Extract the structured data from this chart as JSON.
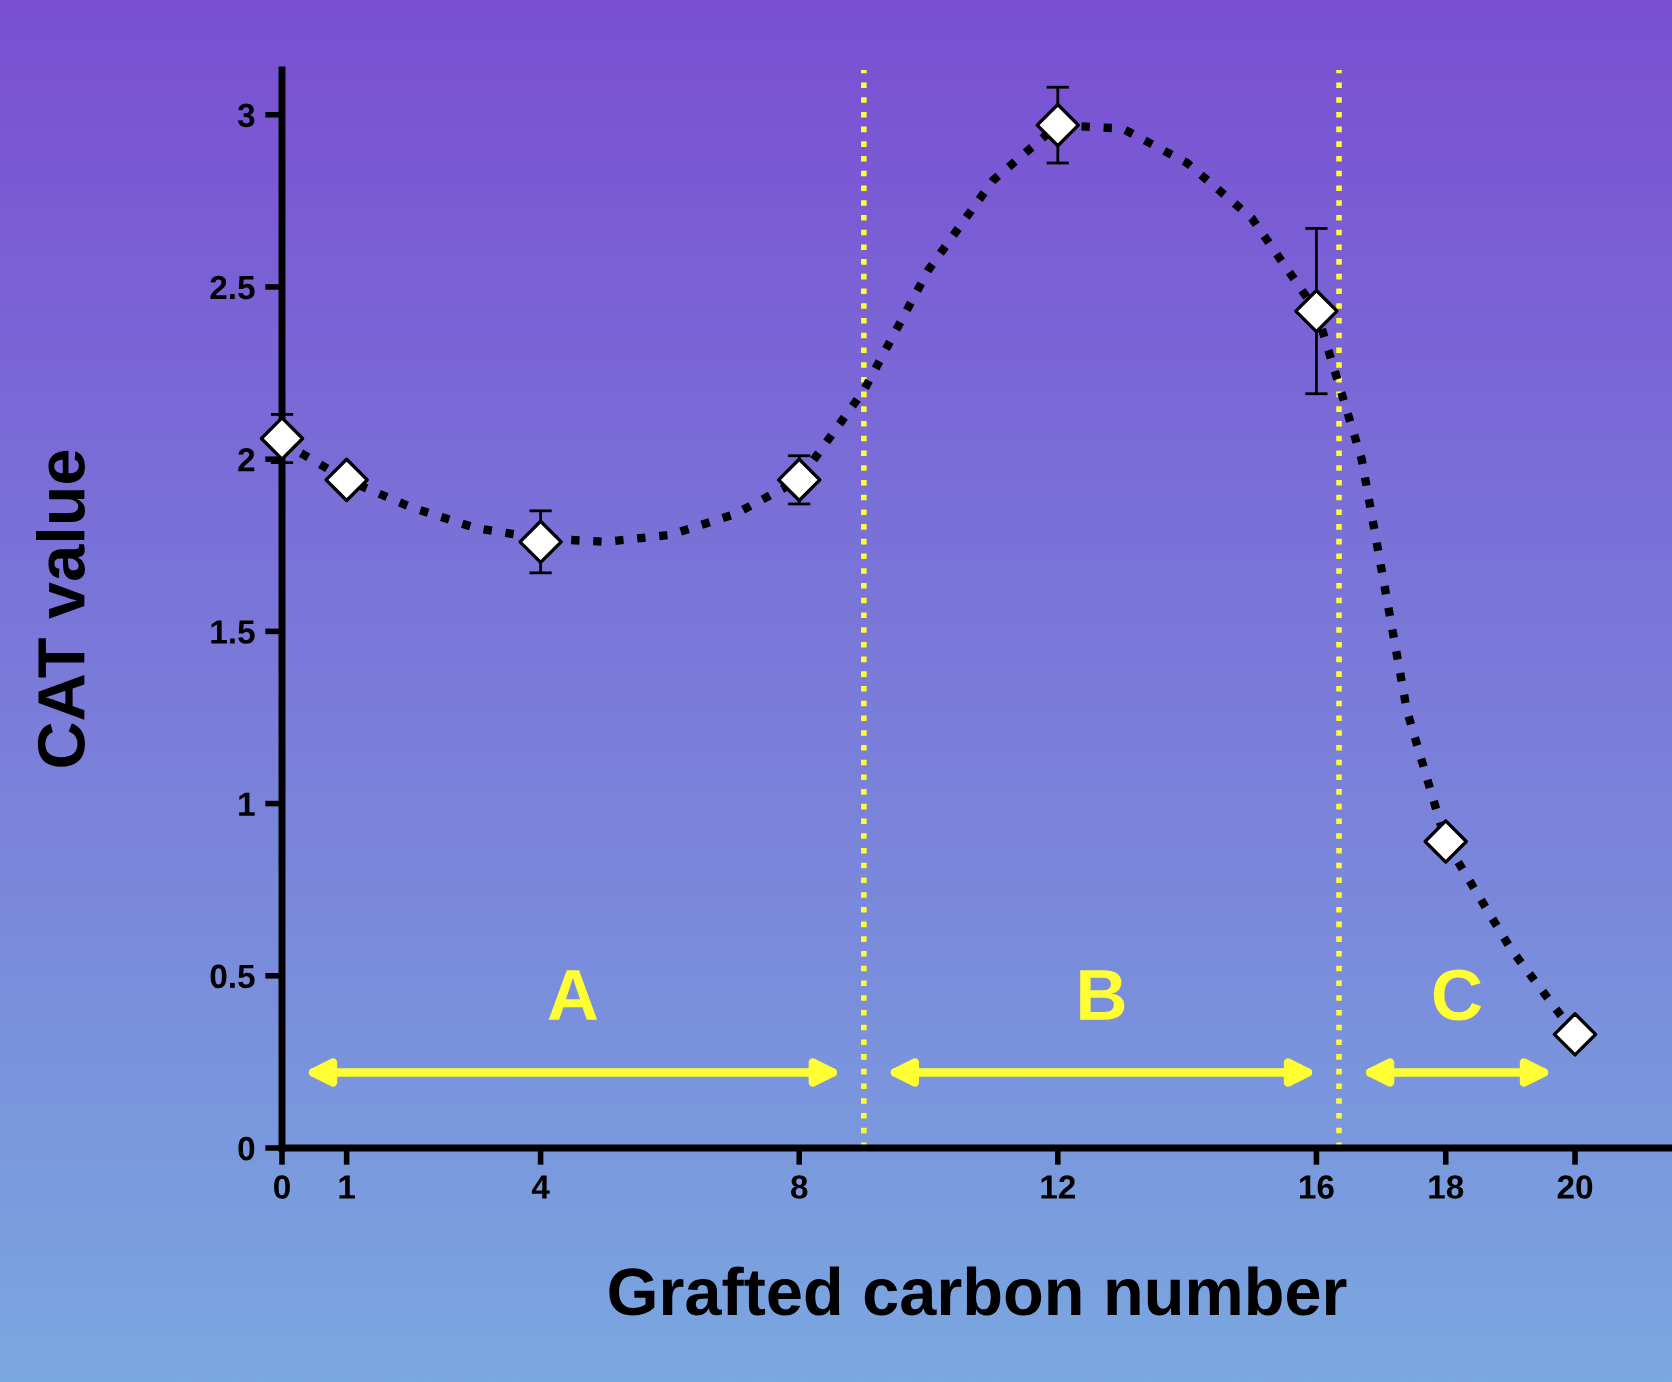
{
  "chart_data": {
    "type": "scatter",
    "xlabel": "Grafted carbon number",
    "ylabel": "CAT value",
    "xlim": [
      0,
      21.5
    ],
    "ylim": [
      0,
      3.13
    ],
    "xticks": [
      0,
      1,
      4,
      8,
      12,
      16,
      18,
      20
    ],
    "yticks": [
      0,
      {
        "value": 0.5,
        "label": "0.5"
      },
      1,
      {
        "value": 1.5,
        "label": "1.5"
      },
      2,
      {
        "value": 2.5,
        "label": "2.5"
      },
      3
    ],
    "grid": false,
    "legend": false,
    "series": [
      {
        "type": "line",
        "color": "#000000",
        "line_style": "dotted",
        "marker": "none",
        "x": [
          0,
          1,
          2,
          3,
          4,
          5,
          6,
          7,
          8,
          9,
          10,
          11,
          12,
          13,
          14,
          15,
          16,
          16.7,
          17.4,
          18,
          19,
          20
        ],
        "values": [
          2.05,
          1.94,
          1.86,
          1.8,
          1.77,
          1.76,
          1.78,
          1.84,
          1.94,
          2.2,
          2.55,
          2.81,
          2.97,
          2.96,
          2.86,
          2.7,
          2.43,
          2.0,
          1.27,
          0.89,
          0.58,
          0.33
        ]
      },
      {
        "color": "#ffffff",
        "marker": "diamond",
        "x": [
          0,
          1,
          4,
          8,
          12,
          16,
          18,
          20
        ],
        "values": [
          2.06,
          1.94,
          1.76,
          1.94,
          2.97,
          2.43,
          0.89,
          0.33
        ],
        "errors": [
          0.07,
          null,
          0.09,
          0.07,
          0.11,
          0.24,
          null,
          null
        ]
      }
    ],
    "ref_lines": [
      {
        "axis": "x",
        "value": 9.0,
        "color": "#ffff33",
        "line_style": "dotted"
      },
      {
        "axis": "x",
        "value": 16.35,
        "color": "#ffff33",
        "line_style": "dotted"
      }
    ],
    "annotations": [
      "A",
      "B",
      "C"
    ]
  }
}
